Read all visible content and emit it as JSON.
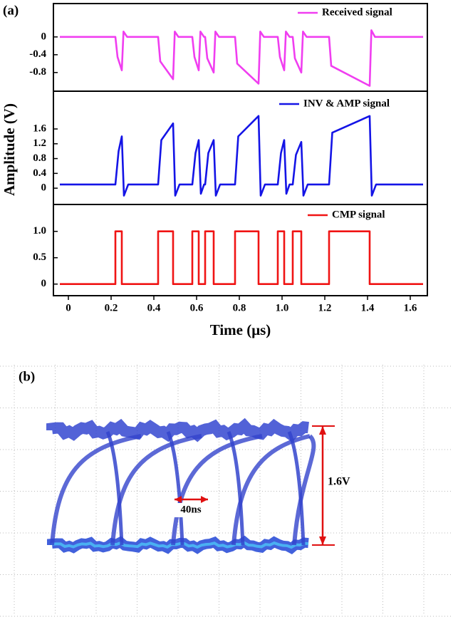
{
  "panel_label": "(a)",
  "ylabel": "Amplitude (V)",
  "chart_data": [
    {
      "type": "line",
      "xlim": [
        -0.07,
        1.68
      ],
      "ylim": [
        -1.22,
        0.75
      ],
      "yticks": [
        0,
        -0.4,
        -0.8
      ],
      "x": [
        -0.04,
        0.22,
        0.23,
        0.25,
        0.258,
        0.275,
        0.42,
        0.43,
        0.49,
        0.498,
        0.515,
        0.58,
        0.59,
        0.61,
        0.618,
        0.635,
        0.64,
        0.65,
        0.68,
        0.688,
        0.705,
        0.78,
        0.79,
        0.89,
        0.898,
        0.915,
        0.98,
        0.99,
        1.01,
        1.018,
        1.035,
        1.05,
        1.06,
        1.09,
        1.098,
        1.115,
        1.22,
        1.23,
        1.41,
        1.418,
        1.435,
        1.66
      ],
      "series": [
        {
          "name": "Received signal",
          "color": "#f03ef0",
          "values": [
            0,
            0,
            -0.45,
            -0.75,
            0.12,
            0,
            0,
            -0.55,
            -0.95,
            0.12,
            0,
            0,
            -0.45,
            -0.75,
            0.12,
            0,
            0,
            -0.48,
            -0.8,
            0.12,
            0,
            0,
            -0.6,
            -1.05,
            0.12,
            0,
            0,
            -0.45,
            -0.75,
            0.12,
            0,
            0,
            -0.48,
            -0.8,
            0.12,
            0,
            0,
            -0.65,
            -1.1,
            0.15,
            0,
            0
          ]
        }
      ]
    },
    {
      "type": "line",
      "xlim": [
        -0.07,
        1.68
      ],
      "ylim": [
        -0.44,
        2.62
      ],
      "yticks": [
        0,
        0.4,
        0.8,
        1.2,
        1.6
      ],
      "x": [
        -0.04,
        0.22,
        0.235,
        0.25,
        0.26,
        0.28,
        0.42,
        0.435,
        0.49,
        0.5,
        0.52,
        0.58,
        0.595,
        0.61,
        0.62,
        0.635,
        0.64,
        0.655,
        0.68,
        0.69,
        0.71,
        0.78,
        0.795,
        0.89,
        0.9,
        0.92,
        0.98,
        0.995,
        1.01,
        1.02,
        1.035,
        1.05,
        1.065,
        1.09,
        1.1,
        1.12,
        1.22,
        1.235,
        1.41,
        1.42,
        1.44,
        1.66
      ],
      "series": [
        {
          "name": "INV & AMP signal",
          "color": "#1414e6",
          "values": [
            0.1,
            0.1,
            1.0,
            1.4,
            -0.2,
            0.1,
            0.1,
            1.3,
            1.75,
            -0.2,
            0.1,
            0.1,
            0.95,
            1.3,
            -0.15,
            0.1,
            0.1,
            0.95,
            1.3,
            -0.2,
            0.1,
            0.1,
            1.4,
            1.95,
            -0.2,
            0.1,
            0.1,
            0.95,
            1.3,
            -0.15,
            0.1,
            0.1,
            0.9,
            1.25,
            -0.2,
            0.1,
            0.1,
            1.5,
            1.95,
            -0.2,
            0.1,
            0.1
          ]
        }
      ]
    },
    {
      "type": "line",
      "xlim": [
        -0.07,
        1.68
      ],
      "ylim": [
        -0.22,
        1.51
      ],
      "yticks": [
        0,
        0.5,
        {
          "value": 1,
          "label": "1.0"
        }
      ],
      "xlabel": "Time (μs)",
      "xticks": [
        0,
        0.2,
        0.4,
        0.6,
        0.8,
        {
          "value": 1,
          "label": "1.0"
        },
        1.2,
        1.4,
        1.6
      ],
      "x": [
        -0.04,
        0.22,
        0.22,
        0.25,
        0.25,
        0.42,
        0.42,
        0.49,
        0.49,
        0.58,
        0.58,
        0.61,
        0.61,
        0.64,
        0.64,
        0.68,
        0.68,
        0.78,
        0.78,
        0.89,
        0.89,
        0.98,
        0.98,
        1.01,
        1.01,
        1.05,
        1.05,
        1.09,
        1.09,
        1.22,
        1.22,
        1.41,
        1.41,
        1.66
      ],
      "series": [
        {
          "name": "CMP signal",
          "color": "#f01414",
          "values": [
            0,
            0,
            1,
            1,
            0,
            0,
            1,
            1,
            0,
            0,
            1,
            1,
            0,
            0,
            1,
            1,
            0,
            0,
            1,
            1,
            0,
            0,
            1,
            1,
            0,
            0,
            1,
            1,
            0,
            0,
            1,
            1,
            0,
            0
          ]
        }
      ]
    }
  ],
  "eye_diagram": {
    "panel_label": "(b)",
    "amplitude_label": "1.6V",
    "period_label": "40ns"
  }
}
